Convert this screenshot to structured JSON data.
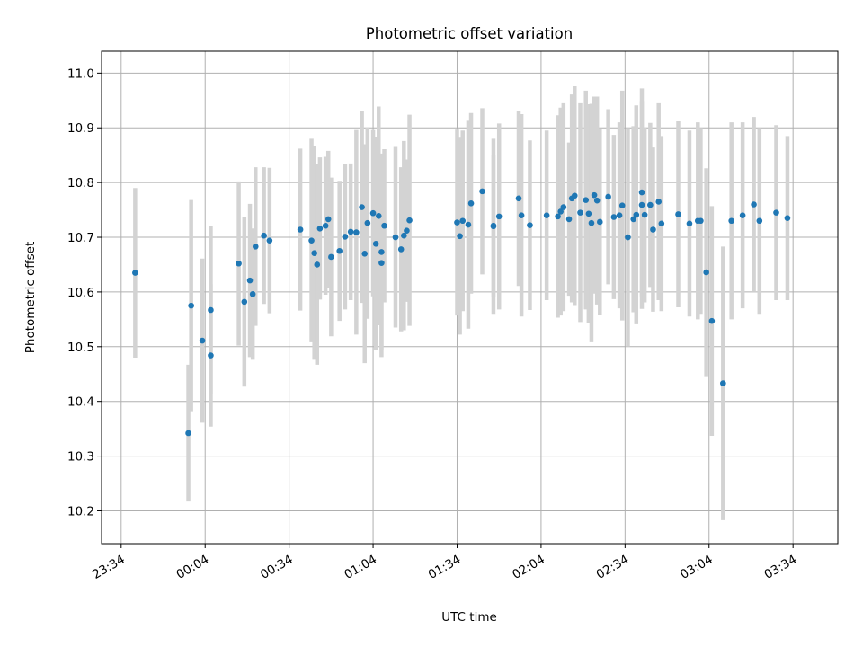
{
  "chart_data": {
    "type": "scatter",
    "title": "Photometric offset variation",
    "xlabel": "UTC time",
    "ylabel": "Photometric offset",
    "x_unit": "minutes",
    "x_tick_labels": [
      "23:34",
      "00:04",
      "00:34",
      "01:04",
      "01:34",
      "02:04",
      "02:34",
      "03:04",
      "03:34"
    ],
    "xlim": [
      "23:27",
      "03:50"
    ],
    "ylim": [
      10.14,
      11.04
    ],
    "y_ticks": [
      10.2,
      10.3,
      10.4,
      10.5,
      10.6,
      10.7,
      10.8,
      10.9,
      11.0
    ],
    "grid": true,
    "colors": {
      "points": "#1f77b4",
      "error_bars": "#d3d3d3"
    },
    "series": [
      {
        "x": [
          "23:39",
          "23:58",
          "23:59",
          "00:03",
          "00:06",
          "00:06",
          "00:16",
          "00:18",
          "00:20",
          "00:21",
          "00:22",
          "00:25",
          "00:27",
          "00:38",
          "00:42",
          "00:43",
          "00:44",
          "00:45",
          "00:47",
          "00:48",
          "00:49",
          "00:52",
          "00:54",
          "00:56",
          "00:58",
          "01:00",
          "01:01",
          "01:02",
          "01:04",
          "01:05",
          "01:06",
          "01:07",
          "01:07",
          "01:08",
          "01:12",
          "01:14",
          "01:15",
          "01:16",
          "01:17",
          "01:34",
          "01:35",
          "01:36",
          "01:38",
          "01:39",
          "01:43",
          "01:47",
          "01:47",
          "01:49",
          "01:56",
          "01:57",
          "02:00",
          "02:06",
          "02:10",
          "02:11",
          "02:12",
          "02:14",
          "02:15",
          "02:16",
          "02:18",
          "02:20",
          "02:21",
          "02:22",
          "02:23",
          "02:24",
          "02:25",
          "02:28",
          "02:30",
          "02:32",
          "02:33",
          "02:35",
          "02:37",
          "02:38",
          "02:40",
          "02:40",
          "02:41",
          "02:43",
          "02:44",
          "02:46",
          "02:47",
          "02:53",
          "02:57",
          "03:00",
          "03:01",
          "03:03",
          "03:05",
          "03:09",
          "03:12",
          "03:16",
          "03:20",
          "03:22",
          "03:28",
          "03:32"
        ],
        "y": [
          10.635,
          10.342,
          10.575,
          10.511,
          10.484,
          10.567,
          10.652,
          10.582,
          10.621,
          10.596,
          10.683,
          10.703,
          10.694,
          10.714,
          10.694,
          10.671,
          10.65,
          10.716,
          10.721,
          10.733,
          10.664,
          10.675,
          10.701,
          10.71,
          10.709,
          10.755,
          10.67,
          10.726,
          10.744,
          10.688,
          10.739,
          10.673,
          10.653,
          10.721,
          10.7,
          10.678,
          10.703,
          10.712,
          10.731,
          10.727,
          10.702,
          10.73,
          10.723,
          10.762,
          10.784,
          10.72,
          10.721,
          10.738,
          10.771,
          10.74,
          10.722,
          10.74,
          10.738,
          10.747,
          10.755,
          10.733,
          10.771,
          10.776,
          10.745,
          10.768,
          10.743,
          10.726,
          10.777,
          10.767,
          10.728,
          10.774,
          10.737,
          10.74,
          10.758,
          10.7,
          10.733,
          10.741,
          10.782,
          10.759,
          10.741,
          10.759,
          10.714,
          10.765,
          10.725,
          10.742,
          10.725,
          10.73,
          10.73,
          10.636,
          10.547,
          10.433,
          10.73,
          10.74,
          10.76,
          10.73,
          10.745,
          10.735
        ],
        "yerr": [
          0.155,
          0.125,
          0.193,
          0.15,
          0.13,
          0.153,
          0.15,
          0.155,
          0.14,
          0.12,
          0.145,
          0.125,
          0.133,
          0.148,
          0.186,
          0.195,
          0.183,
          0.13,
          0.126,
          0.125,
          0.145,
          0.128,
          0.133,
          0.125,
          0.187,
          0.175,
          0.2,
          0.175,
          0.152,
          0.195,
          0.2,
          0.18,
          0.172,
          0.14,
          0.165,
          0.15,
          0.173,
          0.13,
          0.193,
          0.17,
          0.18,
          0.165,
          0.19,
          0.165,
          0.152,
          0.16,
          0.13,
          0.17,
          0.16,
          0.185,
          0.155,
          0.155,
          0.185,
          0.19,
          0.19,
          0.14,
          0.19,
          0.2,
          0.2,
          0.2,
          0.2,
          0.218,
          0.18,
          0.19,
          0.17,
          0.16,
          0.15,
          0.17,
          0.21,
          0.2,
          0.17,
          0.2,
          0.19,
          0.19,
          0.16,
          0.15,
          0.15,
          0.18,
          0.16,
          0.17,
          0.17,
          0.18,
          0.17,
          0.19,
          0.21,
          0.25,
          0.18,
          0.17,
          0.16,
          0.17,
          0.16,
          0.15
        ]
      }
    ]
  }
}
